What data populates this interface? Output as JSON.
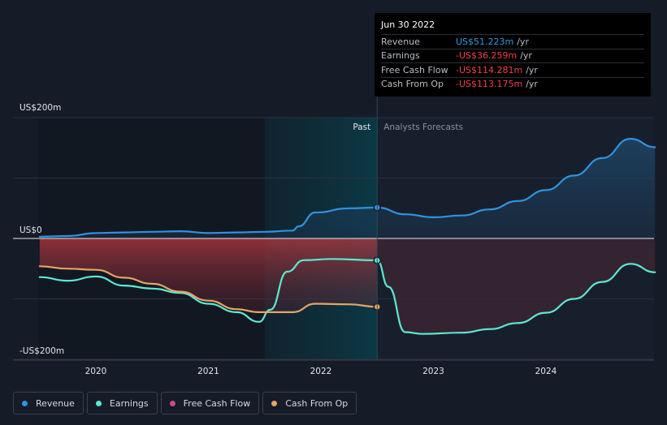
{
  "tooltip": {
    "date": "Jun 30 2022",
    "rows": [
      {
        "label": "Revenue",
        "value": "US$51.223m",
        "unit": "/yr",
        "color": "#2f9be0"
      },
      {
        "label": "Earnings",
        "value": "-US$36.259m",
        "unit": "/yr",
        "color": "#f0404a"
      },
      {
        "label": "Free Cash Flow",
        "value": "-US$114.281m",
        "unit": "/yr",
        "color": "#f0404a"
      },
      {
        "label": "Cash From Op",
        "value": "-US$113.175m",
        "unit": "/yr",
        "color": "#f0404a"
      }
    ]
  },
  "legend": [
    {
      "label": "Revenue",
      "color": "#2e93e0"
    },
    {
      "label": "Earnings",
      "color": "#5ee8d2"
    },
    {
      "label": "Free Cash Flow",
      "color": "#c64b8c"
    },
    {
      "label": "Cash From Op",
      "color": "#e6a465"
    }
  ],
  "chart_data": {
    "type": "line",
    "past_label": "Past",
    "forecast_label": "Analysts Forecasts",
    "y_tick_labels": [
      "US$200m",
      "US$0",
      "-US$200m"
    ],
    "y_ticks": [
      200,
      0,
      -200
    ],
    "x_tick_labels": [
      "2020",
      "2021",
      "2022",
      "2023",
      "2024"
    ],
    "x_ticks": [
      2020,
      2021,
      2022,
      2023,
      2024
    ],
    "xlim": [
      2019.25,
      2024.97
    ],
    "ylim": [
      -400,
      200
    ],
    "gridline_values": [
      200,
      100,
      0,
      -100,
      -200
    ],
    "past_end": 2022.5,
    "highlight_start": 2021.5,
    "series": [
      {
        "name": "Revenue",
        "color": "#2e93e0",
        "past": [
          [
            2019.5,
            3
          ],
          [
            2019.75,
            4
          ],
          [
            2020,
            9
          ],
          [
            2020.25,
            10
          ],
          [
            2020.5,
            11
          ],
          [
            2020.75,
            12
          ],
          [
            2021,
            9
          ],
          [
            2021.25,
            10
          ],
          [
            2021.5,
            11
          ],
          [
            2021.75,
            13
          ],
          [
            2021.8,
            20
          ],
          [
            2021.95,
            43
          ],
          [
            2022.25,
            50
          ],
          [
            2022.5,
            51.2
          ]
        ],
        "forecast": [
          [
            2022.5,
            51.2
          ],
          [
            2022.75,
            40
          ],
          [
            2023,
            35
          ],
          [
            2023.25,
            38
          ],
          [
            2023.5,
            48
          ],
          [
            2023.75,
            62
          ],
          [
            2024,
            80
          ],
          [
            2024.25,
            104
          ],
          [
            2024.5,
            133
          ],
          [
            2024.75,
            165
          ],
          [
            2024.97,
            151
          ]
        ]
      },
      {
        "name": "Earnings",
        "color": "#5ee8d2",
        "past": [
          [
            2019.5,
            -64
          ],
          [
            2019.75,
            -70
          ],
          [
            2020,
            -63
          ],
          [
            2020.25,
            -78
          ],
          [
            2020.5,
            -83
          ],
          [
            2020.75,
            -90
          ],
          [
            2021,
            -108
          ],
          [
            2021.25,
            -122
          ],
          [
            2021.45,
            -138
          ],
          [
            2021.55,
            -118
          ],
          [
            2021.7,
            -55
          ],
          [
            2021.85,
            -36
          ],
          [
            2022.1,
            -34
          ],
          [
            2022.5,
            -36.3
          ]
        ],
        "forecast": [
          [
            2022.5,
            -36.3
          ],
          [
            2022.6,
            -80
          ],
          [
            2022.75,
            -155
          ],
          [
            2022.9,
            -158
          ],
          [
            2023.25,
            -156
          ],
          [
            2023.5,
            -150
          ],
          [
            2023.75,
            -140
          ],
          [
            2024,
            -123
          ],
          [
            2024.25,
            -100
          ],
          [
            2024.5,
            -72
          ],
          [
            2024.75,
            -42
          ],
          [
            2024.97,
            -56
          ]
        ]
      },
      {
        "name": "Cash From Op",
        "color": "#e6a465",
        "past": [
          [
            2019.5,
            -46
          ],
          [
            2019.75,
            -50
          ],
          [
            2020,
            -52
          ],
          [
            2020.25,
            -65
          ],
          [
            2020.5,
            -75
          ],
          [
            2020.75,
            -88
          ],
          [
            2021,
            -103
          ],
          [
            2021.25,
            -117
          ],
          [
            2021.45,
            -122
          ],
          [
            2021.75,
            -122
          ],
          [
            2021.95,
            -108
          ],
          [
            2022.25,
            -109
          ],
          [
            2022.5,
            -113.2
          ]
        ],
        "forecast": []
      }
    ]
  }
}
